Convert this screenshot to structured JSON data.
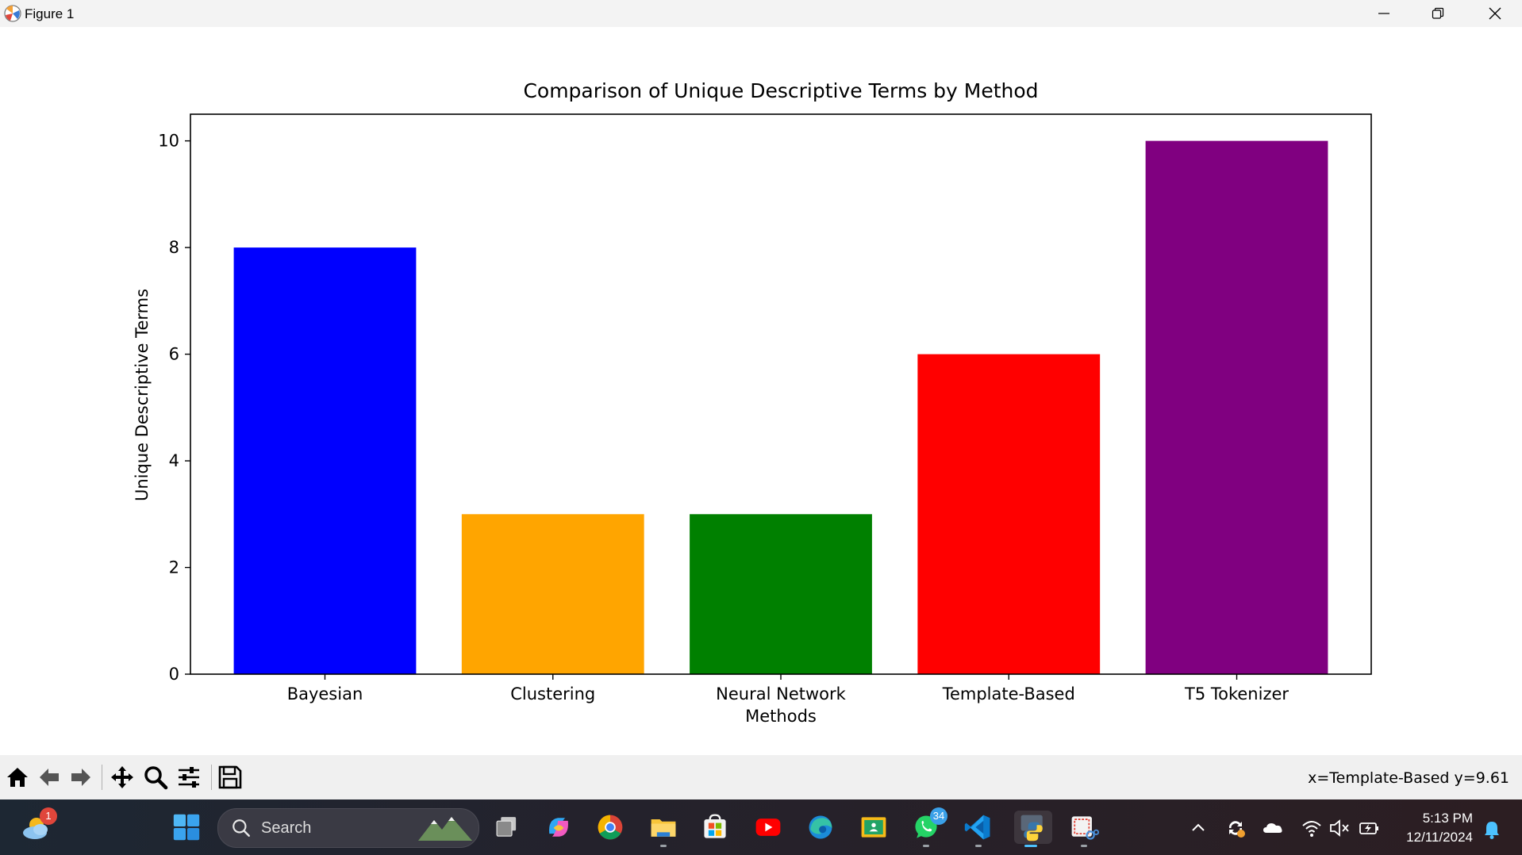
{
  "window": {
    "title": "Figure 1"
  },
  "chart_data": {
    "type": "bar",
    "title": "Comparison of Unique Descriptive Terms by Method",
    "xlabel": "",
    "ylabel": "Unique Descriptive Terms",
    "categories": [
      "Bayesian",
      "Clustering",
      "Neural Network Methods",
      "Template-Based",
      "T5 Tokenizer"
    ],
    "category_lines": [
      [
        "Bayesian"
      ],
      [
        "Clustering"
      ],
      [
        "Neural Network",
        "Methods"
      ],
      [
        "Template-Based"
      ],
      [
        "T5 Tokenizer"
      ]
    ],
    "values": [
      8,
      3,
      3,
      6,
      10
    ],
    "colors": [
      "#0000ff",
      "#ffa500",
      "#008000",
      "#ff0000",
      "#800080"
    ],
    "ylim": [
      0,
      10.5
    ],
    "yticks": [
      0,
      2,
      4,
      6,
      8,
      10
    ],
    "grid": false
  },
  "toolbar": {
    "coords": "x=Template-Based y=9.61",
    "buttons": [
      "home-icon",
      "back-icon",
      "forward-icon",
      "pan-icon",
      "zoom-icon",
      "configure-icon",
      "save-icon"
    ]
  },
  "taskbar": {
    "search_label": "Search",
    "weather_badge": "1",
    "whatsapp_badge": "34",
    "time": "5:13 PM",
    "date": "12/11/2024"
  }
}
